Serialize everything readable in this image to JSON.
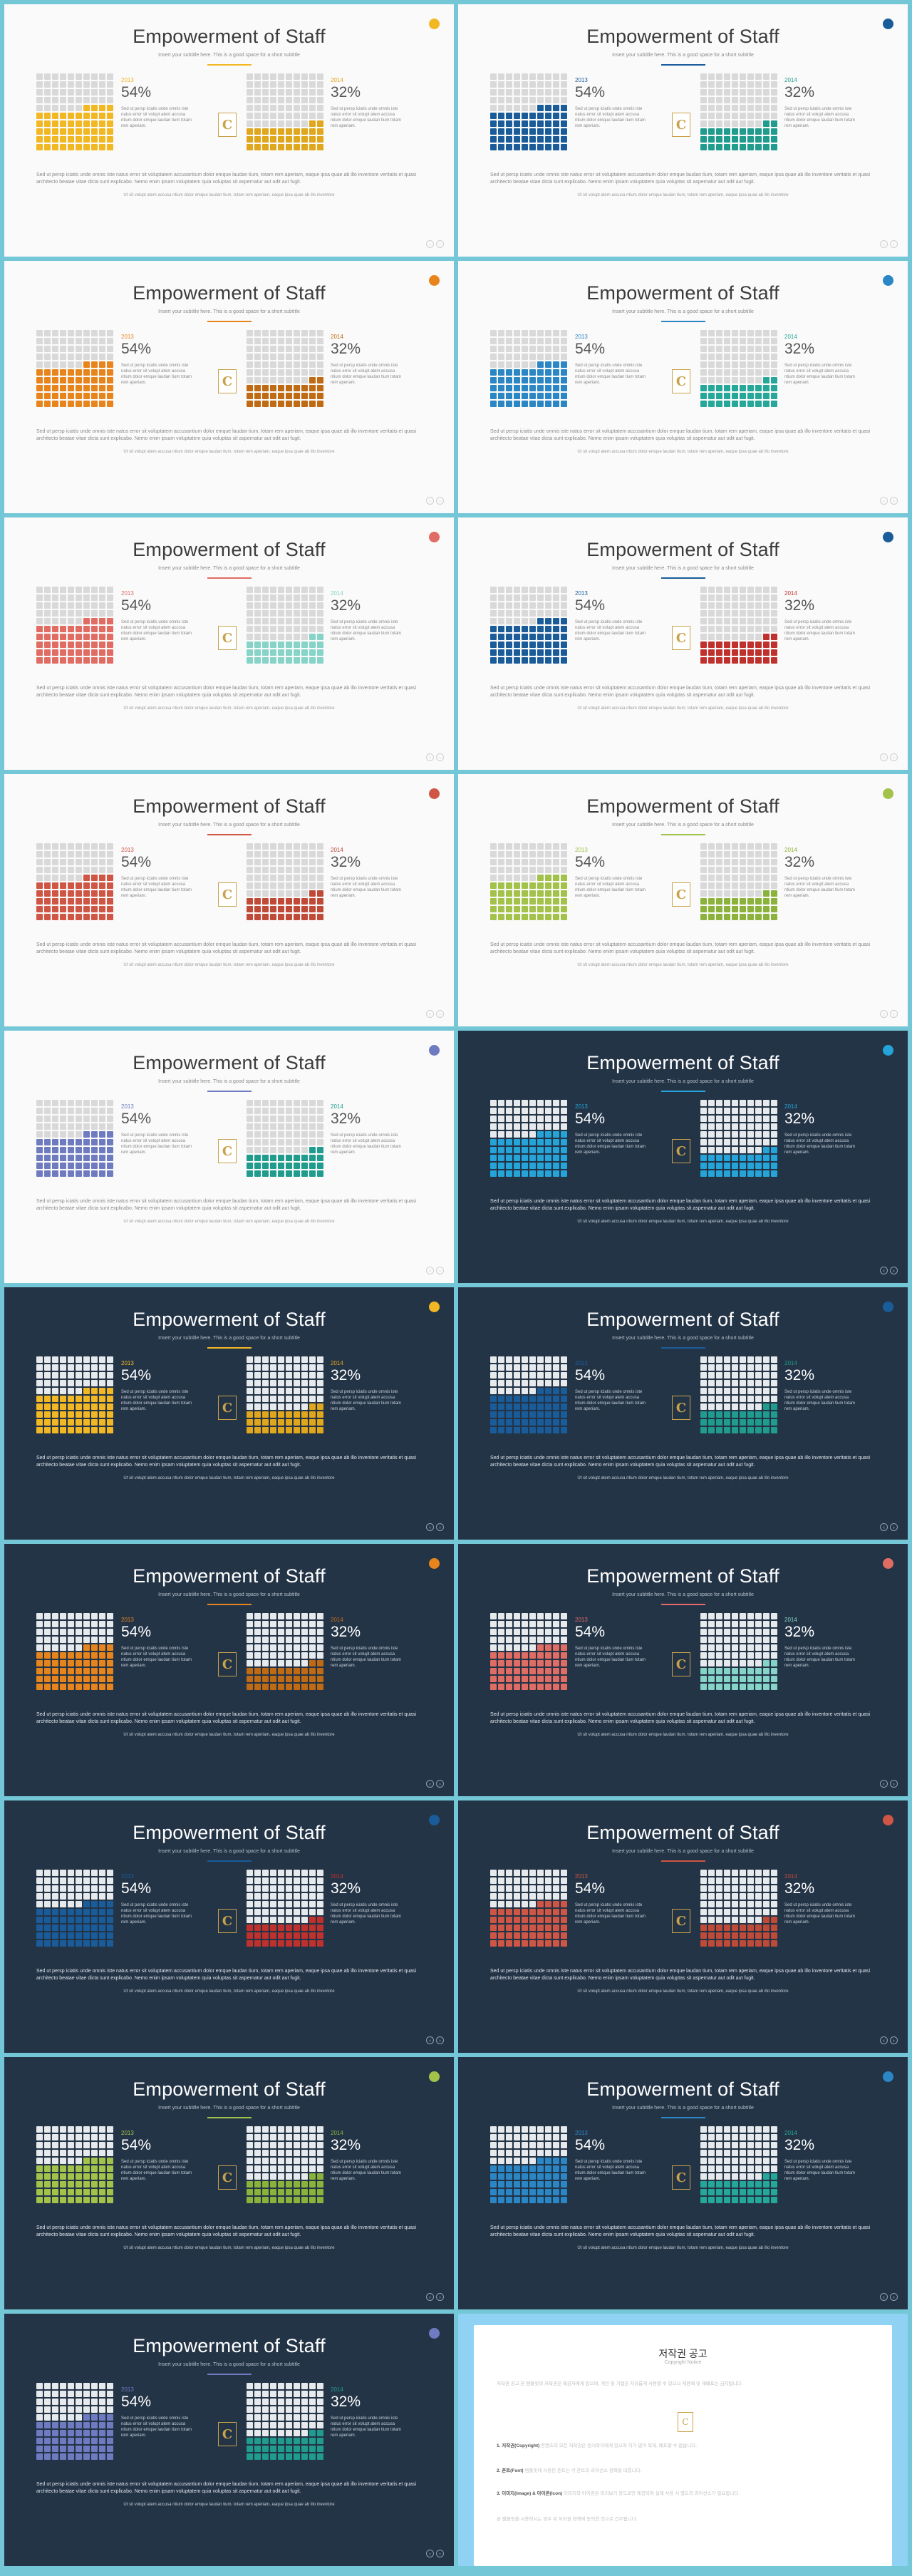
{
  "slide_text": {
    "title": "Empowerment of Staff",
    "subtitle": "Insert your subtitle here. This is a good space for a short subtitle",
    "year_left": "2013",
    "year_right": "2014",
    "pct_left": "54%",
    "pct_right": "32%",
    "desc": "Sed ut persp iciatis unde omnis iste natus error sit volupt atem accusa ntium dolor emque laudan tium totam rem aperiam.",
    "body": "Sed ut persp iciatis unde omnis iste natus error sit voluptatem accusantium dolor emque laudan tium, totam rem aperiam, eaque ipsa quae ab illo inventore veritatis et quasi architecto beatae vitae dicta sunt explicabo. Nemo enim ipsam voluptatem quia voluptas sit aspernatur aut odit aut fugit.",
    "small": "Ut sit volupt atem accusa ntium dolor emque laudan tium, totam rem aperiam, eaque ipsa quae ab illo inventore",
    "logo_letter": "C",
    "nav_prev": "‹",
    "nav_next": "›"
  },
  "waffle": {
    "left_filled_percent": 54,
    "right_filled_percent": 32
  },
  "slides": [
    {
      "theme": "light",
      "accent_left": "#f2b824",
      "accent_right": "#e0a61c",
      "dot": "#f2b824"
    },
    {
      "theme": "light",
      "accent_left": "#1a5c9a",
      "accent_right": "#1f9c8e",
      "dot": "#1a5c9a"
    },
    {
      "theme": "light",
      "accent_left": "#e7851c",
      "accent_right": "#c06a13",
      "dot": "#e7851c"
    },
    {
      "theme": "light",
      "accent_left": "#2a86c4",
      "accent_right": "#25a89a",
      "dot": "#2a86c4"
    },
    {
      "theme": "light",
      "accent_left": "#e06c63",
      "accent_right": "#86d3c8",
      "dot": "#e06c63"
    },
    {
      "theme": "light",
      "accent_left": "#1a5c9a",
      "accent_right": "#c0312e",
      "dot": "#1a5c9a"
    },
    {
      "theme": "light",
      "accent_left": "#cf5545",
      "accent_right": "#c04a38",
      "dot": "#cf5545"
    },
    {
      "theme": "light",
      "accent_left": "#a3c24a",
      "accent_right": "#8bb23a",
      "dot": "#a3c24a"
    },
    {
      "theme": "light",
      "accent_left": "#6f7bc0",
      "accent_right": "#1f9c8e",
      "dot": "#6f7bc0"
    },
    {
      "theme": "dark",
      "accent_left": "#24a4d8",
      "accent_right": "#24a4d8",
      "dot": "#24a4d8"
    },
    {
      "theme": "dark",
      "accent_left": "#f2b824",
      "accent_right": "#e0a61c",
      "dot": "#f2b824"
    },
    {
      "theme": "dark",
      "accent_left": "#1a5c9a",
      "accent_right": "#1f9c8e",
      "dot": "#1a5c9a"
    },
    {
      "theme": "dark",
      "accent_left": "#e7851c",
      "accent_right": "#c06a13",
      "dot": "#e7851c"
    },
    {
      "theme": "dark",
      "accent_left": "#e06c63",
      "accent_right": "#86d3c8",
      "dot": "#e06c63"
    },
    {
      "theme": "dark",
      "accent_left": "#1a5c9a",
      "accent_right": "#c0312e",
      "dot": "#1a5c9a"
    },
    {
      "theme": "dark",
      "accent_left": "#cf5545",
      "accent_right": "#c04a38",
      "dot": "#cf5545"
    },
    {
      "theme": "dark",
      "accent_left": "#a3c24a",
      "accent_right": "#8bb23a",
      "dot": "#a3c24a"
    },
    {
      "theme": "dark",
      "accent_left": "#2a86c4",
      "accent_right": "#25a89a",
      "dot": "#2a86c4"
    },
    {
      "theme": "dark",
      "accent_left": "#6f7bc0",
      "accent_right": "#1f9c8e",
      "dot": "#6f7bc0"
    }
  ],
  "notice": {
    "title": "저작권 공고",
    "subtitle": "Copyright Notice",
    "intro": "저작권 공고 본 템플릿의 저작권은 제공자에게 있으며, 개인 및 기업은 자유롭게 사용할 수 있으나 재판매 및 재배포는 금지됩니다.",
    "sec1_head": "1. 저작권(Copyright)",
    "sec1_body": "콘텐츠의 모든 저작권은 원저작자에게 있으며 허가 없이 복제, 배포할 수 없습니다.",
    "sec2_head": "2. 폰트(Font)",
    "sec2_body": "템플릿에 사용된 폰트는 각 폰트의 라이선스 정책을 따릅니다.",
    "sec3_head": "3. 이미지(Image) & 아이콘(Icon)",
    "sec3_body": "이미지와 아이콘은 미리보기 용도로만 제공되며 실제 사용 시 별도의 라이선스가 필요합니다.",
    "footer": "본 템플릿을 사용하시는 경우 위 저작권 정책에 동의한 것으로 간주됩니다."
  }
}
